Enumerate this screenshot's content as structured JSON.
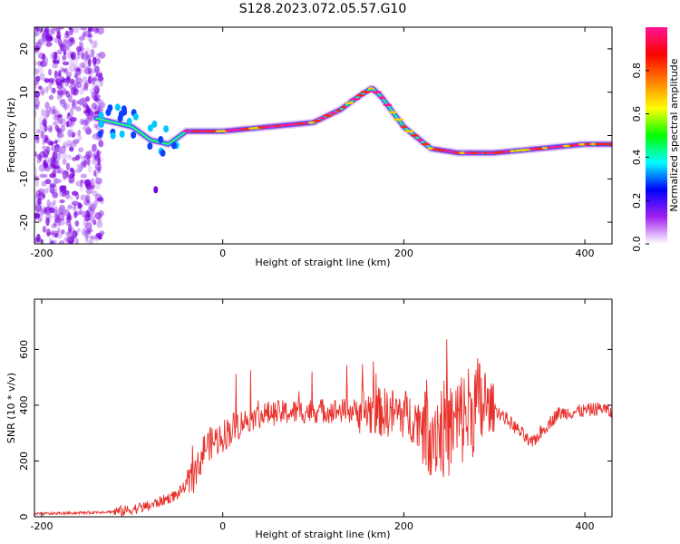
{
  "title": "S128.2023.072.05.57.G10",
  "chart_data": [
    {
      "type": "heatmap",
      "xlabel": "Height of straight line (km)",
      "ylabel": "Frequency (Hz)",
      "xlim": [
        -208,
        430
      ],
      "ylim": [
        -25,
        25
      ],
      "xticks": [
        -200,
        0,
        200,
        400
      ],
      "yticks": [
        -20,
        -10,
        0,
        10,
        20
      ],
      "colorbar": {
        "label": "Normalized spectral amplitude",
        "range": [
          0,
          1
        ],
        "ticks": [
          "0.0",
          "0.2",
          "0.4",
          "0.6",
          "0.8"
        ],
        "colors": [
          "#ffffff",
          "#a020f0",
          "#0000ff",
          "#00ffff",
          "#00ff00",
          "#ffff00",
          "#ff8000",
          "#ff0000",
          "#ff1493"
        ]
      },
      "ridge": {
        "x": [
          -140,
          -120,
          -100,
          -80,
          -60,
          -40,
          0,
          50,
          100,
          130,
          150,
          165,
          175,
          200,
          230,
          260,
          300,
          350,
          400,
          430
        ],
        "y": [
          4,
          3,
          2,
          -1,
          -2,
          1,
          1,
          2,
          3,
          6,
          9,
          11,
          9,
          2,
          -3,
          -4,
          -4,
          -3,
          -2,
          -2
        ]
      }
    },
    {
      "type": "line",
      "xlabel": "Height of straight line (km)",
      "ylabel": "SNR (10 * v/v)",
      "xlim": [
        -208,
        430
      ],
      "ylim": [
        0,
        780
      ],
      "xticks": [
        -200,
        0,
        200,
        400
      ],
      "yticks": [
        0,
        200,
        400,
        600
      ],
      "color": "#e8302a",
      "x": [
        -208,
        -150,
        -110,
        -80,
        -50,
        -30,
        -20,
        0,
        20,
        50,
        100,
        150,
        200,
        230,
        250,
        260,
        280,
        300,
        330,
        340,
        370,
        400,
        420,
        430
      ],
      "y": [
        10,
        15,
        20,
        40,
        80,
        150,
        250,
        290,
        340,
        370,
        380,
        380,
        370,
        320,
        310,
        340,
        400,
        390,
        300,
        260,
        370,
        380,
        390,
        370
      ]
    }
  ]
}
